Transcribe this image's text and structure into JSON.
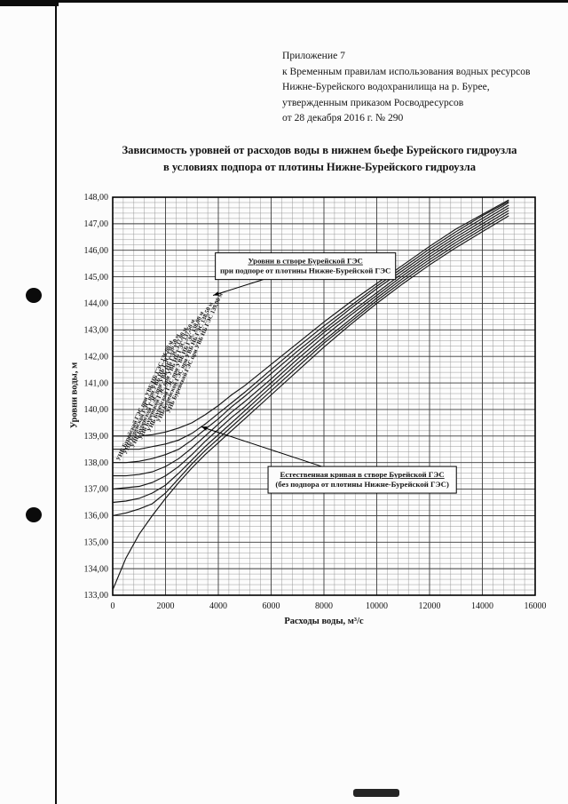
{
  "page": {
    "header_lines": [
      "Приложение 7",
      "к Временным правилам использования водных ресурсов",
      "Нижне-Бурейского водохранилища на р. Бурее,",
      "утвержденным приказом Росводресурсов",
      "от 28 декабря 2016 г. № 290"
    ],
    "title_lines": [
      "Зависимость уровней от расходов воды в нижнем бьефе Бурейского гидроузла",
      "в условиях подпора от плотины Нижне-Бурейского гидроузла"
    ]
  },
  "chart_data": {
    "type": "line",
    "title": "Зависимость уровней от расходов воды в нижнем бьефе Бурейского гидроузла в условиях подпора от плотины Нижне-Бурейского гидроузла",
    "xlabel": "Расходы воды, м³/с",
    "ylabel": "Уровни воды, м",
    "xlim": [
      0,
      16000
    ],
    "ylim": [
      133,
      148
    ],
    "x_major_step": 2000,
    "x_minor_step": 400,
    "y_major_step": 1,
    "y_minor_step": 0.2,
    "x_ticks": [
      0,
      2000,
      4000,
      6000,
      8000,
      10000,
      12000,
      14000,
      16000
    ],
    "y_ticks": [
      133,
      134,
      135,
      136,
      137,
      138,
      139,
      140,
      141,
      142,
      143,
      144,
      145,
      146,
      147,
      148
    ],
    "grid": true,
    "legend": "none",
    "x": [
      0,
      500,
      1000,
      1500,
      2000,
      2500,
      3000,
      3500,
      4000,
      4500,
      5000,
      6000,
      7000,
      8000,
      9000,
      10000,
      11000,
      12000,
      13000,
      14000,
      15000
    ],
    "series": [
      {
        "name": "Естественная кривая (без подпора от плотины Нижне-Бурейской ГЭС)",
        "values": [
          133.2,
          134.4,
          135.3,
          136.0,
          136.65,
          137.25,
          137.8,
          138.3,
          138.75,
          139.2,
          139.65,
          140.55,
          141.45,
          142.35,
          143.2,
          144.0,
          144.75,
          145.45,
          146.1,
          146.7,
          147.3
        ]
      },
      {
        "name": "При УВБ НБ ГЭС 136,00 м",
        "values": [
          136.0,
          136.1,
          136.25,
          136.45,
          136.85,
          137.4,
          137.95,
          138.45,
          138.9,
          139.35,
          139.8,
          140.7,
          141.6,
          142.5,
          143.3,
          144.1,
          144.85,
          145.55,
          146.2,
          146.8,
          147.4
        ]
      },
      {
        "name": "При УВБ НБ ГЭС 136,50 м",
        "values": [
          136.5,
          136.55,
          136.65,
          136.85,
          137.15,
          137.6,
          138.1,
          138.6,
          139.05,
          139.5,
          139.95,
          140.85,
          141.75,
          142.6,
          143.4,
          144.2,
          144.95,
          145.65,
          146.3,
          146.9,
          147.5
        ]
      },
      {
        "name": "При УВБ НБ ГЭС 137,00 м",
        "values": [
          137.0,
          137.05,
          137.1,
          137.25,
          137.5,
          137.85,
          138.3,
          138.8,
          139.25,
          139.7,
          140.1,
          141.0,
          141.9,
          142.75,
          143.55,
          144.3,
          145.05,
          145.75,
          146.4,
          147.0,
          147.6
        ]
      },
      {
        "name": "При УВБ НБ ГЭС 137,50 м",
        "values": [
          137.5,
          137.5,
          137.55,
          137.65,
          137.85,
          138.15,
          138.55,
          139.0,
          139.45,
          139.9,
          140.3,
          141.15,
          142.05,
          142.9,
          143.65,
          144.4,
          145.15,
          145.85,
          146.5,
          147.1,
          147.7
        ]
      },
      {
        "name": "При УВБ НБ ГЭС 138,00 м",
        "values": [
          138.0,
          138.0,
          138.05,
          138.15,
          138.3,
          138.5,
          138.85,
          139.25,
          139.65,
          140.1,
          140.5,
          141.35,
          142.2,
          143.0,
          143.8,
          144.55,
          145.25,
          145.95,
          146.6,
          147.2,
          147.8
        ]
      },
      {
        "name": "При УВБ НБ ГЭС 138,50 м",
        "values": [
          138.5,
          138.5,
          138.5,
          138.6,
          138.7,
          138.85,
          139.1,
          139.45,
          139.85,
          140.25,
          140.65,
          141.5,
          142.35,
          143.15,
          143.9,
          144.65,
          145.35,
          146.05,
          146.7,
          147.3,
          147.85
        ]
      },
      {
        "name": "При УВБ НБ ГЭС 139,00 м",
        "values": [
          139.0,
          139.0,
          139.0,
          139.05,
          139.15,
          139.3,
          139.5,
          139.8,
          140.15,
          140.55,
          140.9,
          141.7,
          142.5,
          143.3,
          144.05,
          144.75,
          145.45,
          146.15,
          146.8,
          147.35,
          147.9
        ]
      }
    ],
    "curve_labels": [
      {
        "text": "УНБ Бурейской ГЭС при УВБ НБ ГЭС 136,00 м",
        "x": 260,
        "y": 138.05,
        "angle": -66
      },
      {
        "text": "УНБ Бурейской ГЭС при УВБ НБ ГЭС 136,50 м",
        "x": 520,
        "y": 138.3,
        "angle": -66
      },
      {
        "text": "УНБ Бурейской ГЭС при УВБ НБ ГЭС 137,00 м",
        "x": 800,
        "y": 138.55,
        "angle": -66
      },
      {
        "text": "УНБ Бурейской ГЭС при УВБ НБ ГЭС 137,50 м",
        "x": 1100,
        "y": 138.85,
        "angle": -66
      },
      {
        "text": "УНБ Бурейской ГЭС при УВБ НБ ГЭС 138,00 м",
        "x": 1430,
        "y": 139.15,
        "angle": -66
      },
      {
        "text": "УНБ Бурейской ГЭС при УВБ НБ ГЭС 138,50 м",
        "x": 1780,
        "y": 139.5,
        "angle": -66
      },
      {
        "text": "УНБ Бурейской ГЭС при УВБ НБ ГЭС 139,00 м",
        "x": 2150,
        "y": 139.85,
        "angle": -66
      }
    ],
    "annotations": [
      {
        "id": "backwater-label",
        "lines": [
          "Уровни в створе Бурейской ГЭС",
          "при подпоре от плотины Нижне-Бурейской ГЭС"
        ],
        "cx": 7300,
        "cy": 145.4,
        "tip_x": 3800,
        "tip_y": 144.3
      },
      {
        "id": "natural-label",
        "lines": [
          "Естественная кривая в створе Бурейской ГЭС",
          "(без подпора от плотины Нижне-Бурейской ГЭС)"
        ],
        "cx": 9450,
        "cy": 137.35,
        "tip_x": 3350,
        "tip_y": 139.35
      }
    ]
  }
}
